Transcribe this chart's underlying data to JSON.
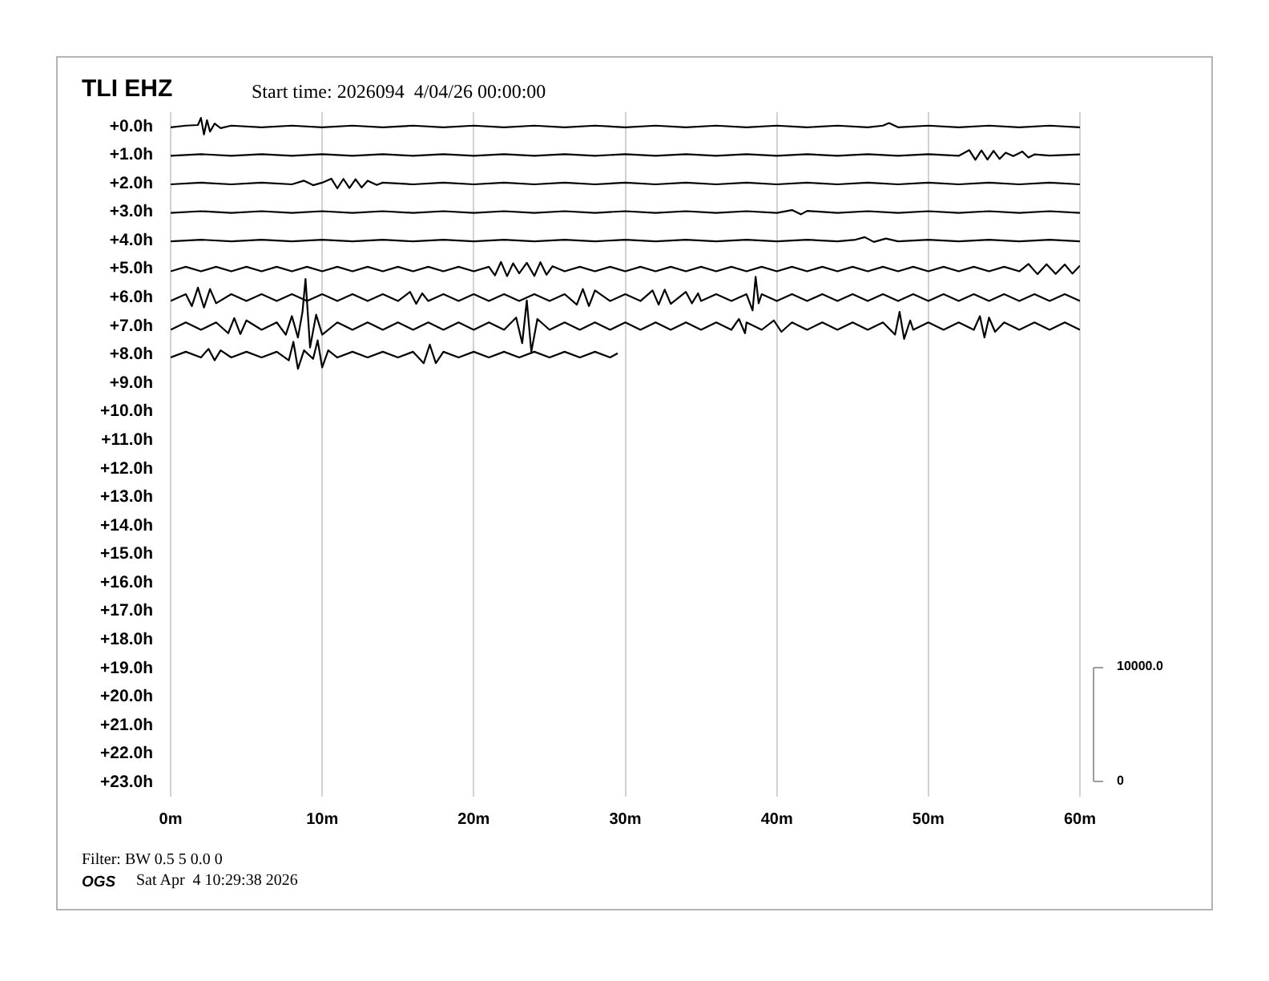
{
  "chart_data": {
    "type": "line",
    "title": "TLI EHZ",
    "subtitle": "Start time: 2026094  4/04/26 00:00:00",
    "annotations": [
      "Filter: BW 0.5 5 0.0 0",
      "OGS",
      "Sat Apr  4 10:29:38 2026"
    ],
    "xlim": [
      0,
      60
    ],
    "xticks": [
      {
        "value": 0,
        "label": "0m"
      },
      {
        "value": 10,
        "label": "10m"
      },
      {
        "value": 20,
        "label": "20m"
      },
      {
        "value": 30,
        "label": "30m"
      },
      {
        "value": 40,
        "label": "40m"
      },
      {
        "value": 50,
        "label": "50m"
      },
      {
        "value": 60,
        "label": "60m"
      }
    ],
    "ylim": [
      23.5,
      -0.5
    ],
    "yticks": [
      {
        "value": 0,
        "label": "+0.0h"
      },
      {
        "value": 1,
        "label": "+1.0h"
      },
      {
        "value": 2,
        "label": "+2.0h"
      },
      {
        "value": 3,
        "label": "+3.0h"
      },
      {
        "value": 4,
        "label": "+4.0h"
      },
      {
        "value": 5,
        "label": "+5.0h"
      },
      {
        "value": 6,
        "label": "+6.0h"
      },
      {
        "value": 7,
        "label": "+7.0h"
      },
      {
        "value": 8,
        "label": "+8.0h"
      },
      {
        "value": 9,
        "label": "+9.0h"
      },
      {
        "value": 10,
        "label": "+10.0h"
      },
      {
        "value": 11,
        "label": "+11.0h"
      },
      {
        "value": 12,
        "label": "+12.0h"
      },
      {
        "value": 13,
        "label": "+13.0h"
      },
      {
        "value": 14,
        "label": "+14.0h"
      },
      {
        "value": 15,
        "label": "+15.0h"
      },
      {
        "value": 16,
        "label": "+16.0h"
      },
      {
        "value": 17,
        "label": "+17.0h"
      },
      {
        "value": 18,
        "label": "+18.0h"
      },
      {
        "value": 19,
        "label": "+19.0h"
      },
      {
        "value": 20,
        "label": "+20.0h"
      },
      {
        "value": 21,
        "label": "+21.0h"
      },
      {
        "value": 22,
        "label": "+22.0h"
      },
      {
        "value": 23,
        "label": "+23.0h"
      }
    ],
    "y2lim": [
      -1400,
      58700
    ],
    "y2ticks": [
      0,
      {
        "value": 10000,
        "label": "10000.0"
      }
    ],
    "grid": "x",
    "marker": "none",
    "series": [
      {
        "color": "#000000",
        "x": [
          0,
          1,
          1.8,
          2,
          2.2,
          2.4,
          2.6,
          2.9,
          3.3,
          4,
          6,
          8,
          10,
          12,
          14,
          16,
          18,
          20,
          22,
          24,
          26,
          28,
          30,
          32,
          34,
          36,
          38,
          40,
          42,
          44,
          46,
          47,
          47.4,
          48,
          50,
          52,
          54,
          56,
          58,
          60
        ],
        "values": [
          0.03,
          -0.03,
          -0.05,
          -0.3,
          0.28,
          -0.22,
          0.18,
          -0.1,
          0.06,
          -0.03,
          0.03,
          -0.03,
          0.03,
          -0.03,
          0.03,
          -0.03,
          0.03,
          -0.03,
          0.03,
          -0.03,
          0.03,
          -0.03,
          0.03,
          -0.03,
          0.03,
          -0.03,
          0.03,
          -0.03,
          0.03,
          -0.03,
          0.03,
          -0.03,
          -0.12,
          0.03,
          -0.03,
          0.03,
          -0.03,
          0.03,
          -0.03,
          0.03
        ]
      },
      {
        "color": "#000000",
        "x": [
          0,
          2,
          4,
          6,
          8,
          10,
          12,
          14,
          16,
          18,
          20,
          22,
          24,
          26,
          28,
          30,
          32,
          34,
          36,
          38,
          40,
          42,
          44,
          46,
          48,
          50,
          52,
          52.7,
          53.1,
          53.5,
          53.9,
          54.3,
          54.7,
          55.1,
          55.6,
          56.2,
          56.6,
          57,
          58,
          60
        ],
        "values": [
          1.03,
          0.97,
          1.03,
          0.97,
          1.03,
          0.97,
          1.03,
          0.97,
          1.03,
          0.97,
          1.03,
          0.97,
          1.03,
          0.97,
          1.03,
          0.97,
          1.03,
          0.97,
          1.03,
          0.97,
          1.03,
          0.97,
          1.03,
          0.97,
          1.03,
          0.97,
          1.03,
          0.83,
          1.17,
          0.84,
          1.16,
          0.85,
          1.14,
          0.92,
          1.04,
          0.88,
          1.09,
          0.98,
          1.02,
          0.98
        ]
      },
      {
        "color": "#000000",
        "x": [
          0,
          2,
          4,
          6,
          8,
          8.8,
          9.4,
          10,
          10.6,
          11,
          11.4,
          11.8,
          12.2,
          12.6,
          13,
          13.6,
          14,
          16,
          18,
          20,
          22,
          24,
          26,
          28,
          30,
          32,
          34,
          36,
          38,
          40,
          42,
          44,
          46,
          48,
          50,
          52,
          54,
          56,
          58,
          60
        ],
        "values": [
          2.03,
          1.97,
          2.03,
          1.97,
          2.03,
          1.9,
          2.06,
          1.97,
          1.83,
          2.17,
          1.84,
          2.16,
          1.85,
          2.14,
          1.9,
          2.05,
          1.97,
          2.03,
          1.97,
          2.03,
          1.97,
          2.03,
          1.97,
          2.03,
          1.97,
          2.03,
          1.97,
          2.03,
          1.97,
          2.03,
          1.97,
          2.03,
          1.97,
          2.03,
          1.97,
          2.03,
          1.97,
          2.03,
          1.97,
          2.03
        ]
      },
      {
        "color": "#000000",
        "x": [
          0,
          2,
          4,
          6,
          8,
          10,
          12,
          14,
          16,
          18,
          20,
          22,
          24,
          26,
          28,
          30,
          32,
          34,
          36,
          38,
          40,
          41,
          41.6,
          42,
          44,
          46,
          48,
          50,
          52,
          54,
          56,
          58,
          60
        ],
        "values": [
          3.03,
          2.97,
          3.03,
          2.97,
          3.03,
          2.97,
          3.03,
          2.97,
          3.03,
          2.97,
          3.03,
          2.97,
          3.03,
          2.97,
          3.03,
          2.97,
          3.03,
          2.97,
          3.03,
          2.97,
          3.03,
          2.93,
          3.08,
          2.96,
          3.03,
          2.97,
          3.03,
          2.97,
          3.03,
          2.97,
          3.03,
          2.97,
          3.03
        ]
      },
      {
        "color": "#000000",
        "x": [
          0,
          2,
          4,
          6,
          8,
          10,
          12,
          14,
          16,
          18,
          20,
          22,
          24,
          26,
          28,
          30,
          32,
          34,
          36,
          38,
          40,
          42,
          44,
          45.2,
          45.8,
          46.4,
          47.2,
          48,
          50,
          52,
          54,
          56,
          58,
          60
        ],
        "values": [
          4.03,
          3.97,
          4.03,
          3.97,
          4.03,
          3.97,
          4.03,
          3.97,
          4.03,
          3.97,
          4.03,
          3.97,
          4.03,
          3.97,
          4.03,
          3.97,
          4.03,
          3.97,
          4.03,
          3.97,
          4.03,
          3.97,
          4.03,
          3.97,
          3.88,
          4.05,
          3.93,
          4.03,
          3.97,
          4.03,
          3.97,
          4.03,
          3.97,
          4.03
        ]
      },
      {
        "color": "#000000",
        "x": [
          0,
          1,
          2,
          3,
          4,
          5,
          6,
          7,
          8,
          9,
          10,
          11,
          12,
          13,
          14,
          15,
          16,
          17,
          18,
          19,
          20,
          21,
          21.4,
          21.8,
          22.2,
          22.6,
          23,
          23.5,
          24,
          24.4,
          24.8,
          25.2,
          26,
          27,
          28,
          29,
          30,
          31,
          32,
          33,
          34,
          35,
          36,
          37,
          38,
          39,
          40,
          41,
          42,
          43,
          44,
          45,
          46,
          47,
          48,
          49,
          50,
          51,
          52,
          53,
          54,
          55,
          56,
          56.6,
          57.2,
          57.8,
          58.4,
          59,
          59.5,
          60
        ],
        "values": [
          5.08,
          4.92,
          5.08,
          4.92,
          5.08,
          4.92,
          5.08,
          4.92,
          5.08,
          4.92,
          5.08,
          4.92,
          5.08,
          4.92,
          5.08,
          4.92,
          5.08,
          4.92,
          5.08,
          4.92,
          5.08,
          4.92,
          5.22,
          4.75,
          5.25,
          4.8,
          5.15,
          4.78,
          5.24,
          4.76,
          5.2,
          4.9,
          5.08,
          4.92,
          5.08,
          4.92,
          5.08,
          4.92,
          5.08,
          4.92,
          5.08,
          4.92,
          5.08,
          4.92,
          5.08,
          4.92,
          5.08,
          4.92,
          5.08,
          4.92,
          5.08,
          4.92,
          5.08,
          4.92,
          5.08,
          4.92,
          5.08,
          4.92,
          5.08,
          4.92,
          5.08,
          4.92,
          5.08,
          4.82,
          5.18,
          4.83,
          5.17,
          4.84,
          5.16,
          4.88
        ]
      },
      {
        "color": "#000000",
        "x": [
          0,
          1,
          1.4,
          1.8,
          2.2,
          2.6,
          3,
          4,
          5,
          6,
          7,
          8,
          9,
          10,
          11,
          12,
          13,
          14,
          15,
          15.8,
          16.2,
          16.6,
          17,
          18,
          19,
          20,
          21,
          22,
          23,
          24,
          25,
          26,
          26.8,
          27.2,
          27.6,
          28,
          29,
          30,
          31,
          31.8,
          32.2,
          32.6,
          33,
          34,
          34.4,
          34.8,
          35,
          36,
          37,
          38,
          38.4,
          38.6,
          38.8,
          39,
          40,
          41,
          42,
          43,
          44,
          45,
          46,
          47,
          48,
          49,
          50,
          51,
          52,
          53,
          54,
          55,
          56,
          57,
          58,
          59,
          60
        ],
        "values": [
          6.12,
          5.88,
          6.3,
          5.65,
          6.35,
          5.7,
          6.2,
          5.88,
          6.12,
          5.88,
          6.12,
          5.88,
          6.12,
          5.88,
          6.12,
          5.88,
          6.12,
          5.88,
          6.12,
          5.8,
          6.22,
          5.85,
          6.12,
          5.88,
          6.12,
          5.88,
          6.12,
          5.88,
          6.12,
          5.88,
          6.12,
          5.88,
          6.25,
          5.7,
          6.3,
          5.75,
          6.12,
          5.88,
          6.12,
          5.75,
          6.25,
          5.72,
          6.22,
          5.8,
          6.2,
          5.85,
          6.12,
          5.88,
          6.12,
          5.88,
          6.45,
          5.27,
          6.2,
          5.88,
          6.12,
          5.88,
          6.12,
          5.88,
          6.12,
          5.88,
          6.12,
          5.88,
          6.12,
          5.88,
          6.12,
          5.88,
          6.12,
          5.88,
          6.12,
          5.88,
          6.12,
          5.88,
          6.12,
          5.88,
          6.12
        ]
      },
      {
        "color": "#000000",
        "x": [
          0,
          1,
          2,
          3,
          3.8,
          4.2,
          4.6,
          5,
          6,
          7,
          7.6,
          8,
          8.4,
          8.7,
          8.9,
          9.2,
          9.6,
          10,
          11,
          12,
          13,
          14,
          15,
          16,
          17,
          18,
          19,
          20,
          21,
          22,
          22.8,
          23.2,
          23.5,
          23.8,
          24.2,
          25,
          26,
          27,
          28,
          29,
          30,
          31,
          32,
          33,
          34,
          35,
          36,
          37,
          37.5,
          37.9,
          38,
          39,
          39.8,
          40.3,
          41,
          42,
          43,
          44,
          45,
          46,
          47,
          47.8,
          48.1,
          48.4,
          48.8,
          49,
          50,
          51,
          52,
          53,
          53.4,
          53.7,
          54,
          54.4,
          55,
          56,
          57,
          58,
          59,
          60
        ],
        "values": [
          7.13,
          6.87,
          7.13,
          6.87,
          7.25,
          6.72,
          7.28,
          6.8,
          7.13,
          6.87,
          7.3,
          6.65,
          7.4,
          6.5,
          5.35,
          7.75,
          6.6,
          7.3,
          6.87,
          7.13,
          6.87,
          7.13,
          6.87,
          7.13,
          6.87,
          7.13,
          6.87,
          7.13,
          6.87,
          7.13,
          6.7,
          7.6,
          6.1,
          7.9,
          6.75,
          7.13,
          6.87,
          7.13,
          6.87,
          7.13,
          6.87,
          7.13,
          6.87,
          7.13,
          6.87,
          7.13,
          6.87,
          7.13,
          6.75,
          7.25,
          6.87,
          7.13,
          6.8,
          7.2,
          6.87,
          7.13,
          6.87,
          7.13,
          6.87,
          7.13,
          6.87,
          7.3,
          6.5,
          7.45,
          6.8,
          7.13,
          6.87,
          7.13,
          6.87,
          7.13,
          6.65,
          7.4,
          6.7,
          7.2,
          6.87,
          7.13,
          6.87,
          7.13,
          6.87,
          7.13
        ]
      },
      {
        "color": "#000000",
        "x": [
          0,
          1,
          2,
          2.5,
          2.9,
          3.3,
          4,
          5,
          6,
          7,
          7.8,
          8.1,
          8.4,
          8.8,
          9.4,
          9.7,
          10,
          10.4,
          11,
          12,
          13,
          14,
          15,
          16,
          16.7,
          17.1,
          17.5,
          18,
          19,
          20,
          21,
          22,
          23,
          24,
          25,
          26,
          27,
          28,
          29,
          29.5
        ],
        "values": [
          8.1,
          7.9,
          8.1,
          7.8,
          8.2,
          7.85,
          8.1,
          7.9,
          8.1,
          7.9,
          8.2,
          7.55,
          8.5,
          7.85,
          8.15,
          7.5,
          8.45,
          7.85,
          8.1,
          7.9,
          8.1,
          7.9,
          8.1,
          7.9,
          8.3,
          7.65,
          8.3,
          7.9,
          8.1,
          7.9,
          8.1,
          7.9,
          8.1,
          7.9,
          8.1,
          7.9,
          8.1,
          7.9,
          8.1,
          7.95
        ]
      }
    ]
  }
}
